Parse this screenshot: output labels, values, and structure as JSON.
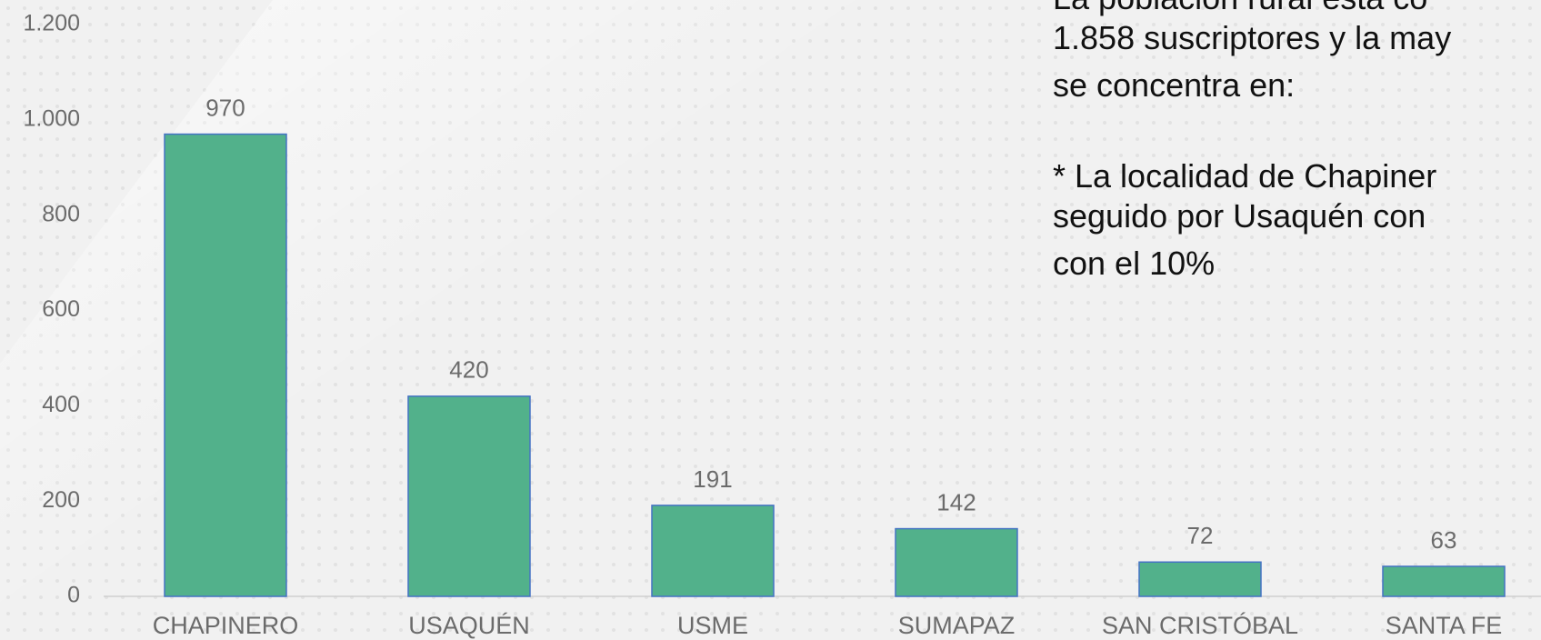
{
  "chart_data": {
    "type": "bar",
    "categories": [
      "CHAPINERO",
      "USAQUÉN",
      "USME",
      "SUMAPAZ",
      "SAN CRISTÓBAL",
      "SANTA FE"
    ],
    "values": [
      970,
      420,
      191,
      142,
      72,
      63
    ],
    "color": "#52b18b",
    "ylim": [
      0,
      1200
    ],
    "yticks": [
      0,
      200,
      400,
      600,
      800,
      {
        "value": 1000,
        "label": "1.000"
      },
      {
        "value": 1200,
        "label": "1.200"
      }
    ],
    "grid": false,
    "annotations": [
      "La población rural está co",
      "1.858 suscriptores y la may",
      "se concentra en:",
      "* La localidad de Chapiner",
      "seguido por Usaquén con",
      "con el 10%"
    ]
  }
}
